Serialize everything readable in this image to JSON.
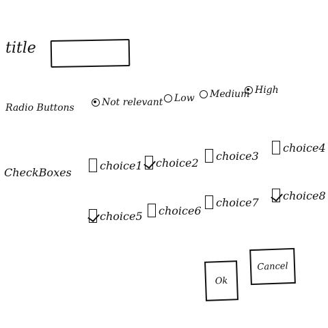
{
  "form": {
    "title_label": "title",
    "title_value": "",
    "radio_group_label": "Radio Buttons",
    "radio_options": [
      {
        "label": "Not relevant",
        "selected": true
      },
      {
        "label": "Low",
        "selected": false
      },
      {
        "label": "Medium",
        "selected": false
      },
      {
        "label": "High",
        "selected": true
      }
    ],
    "checkbox_group_label": "CheckBoxes",
    "checkboxes": [
      {
        "label": "choice1",
        "checked": false
      },
      {
        "label": "choice2",
        "checked": true
      },
      {
        "label": "choice3",
        "checked": false
      },
      {
        "label": "choice4",
        "checked": false
      },
      {
        "label": "choice5",
        "checked": true
      },
      {
        "label": "choice6",
        "checked": false
      },
      {
        "label": "choice7",
        "checked": false
      },
      {
        "label": "choice8",
        "checked": true
      }
    ],
    "ok_label": "Ok",
    "cancel_label": "Cancel"
  }
}
